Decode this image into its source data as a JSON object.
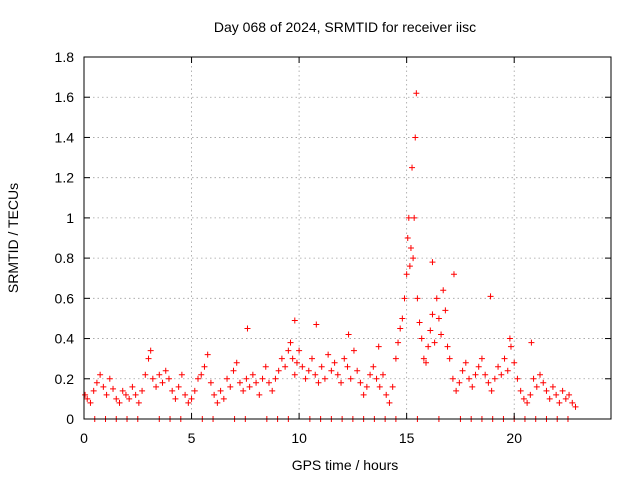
{
  "chart_data": {
    "type": "scatter",
    "title": "Day 068 of 2024, SRMTID for receiver iisc",
    "xlabel": "GPS time / hours",
    "ylabel": "SRMTID / TECUs",
    "xlim": [
      0,
      24.5
    ],
    "ylim": [
      0,
      1.8
    ],
    "xticks": [
      0,
      5,
      10,
      15,
      20
    ],
    "yticks": [
      0,
      0.2,
      0.4,
      0.6,
      0.8,
      1.0,
      1.2,
      1.4,
      1.6,
      1.8
    ],
    "xtick_labels": [
      "0",
      "5",
      "10",
      "15",
      "20"
    ],
    "ytick_labels": [
      "0",
      "0.2",
      "0.4",
      "0.6",
      "0.8",
      "1",
      "1.2",
      "1.4",
      "1.6",
      "1.8"
    ],
    "grid": true,
    "marker": "+",
    "marker_color": "#ff0000",
    "series": [
      {
        "name": "SRMTID",
        "x": [
          0.05,
          0.15,
          0.3,
          0.45,
          0.6,
          0.75,
          0.9,
          1.05,
          1.2,
          1.35,
          1.5,
          1.65,
          1.8,
          1.95,
          2.1,
          2.25,
          2.4,
          2.55,
          2.7,
          2.85,
          3.0,
          3.1,
          3.2,
          3.35,
          3.5,
          3.65,
          3.8,
          3.95,
          4.1,
          4.25,
          4.4,
          4.55,
          4.7,
          4.85,
          5.0,
          5.15,
          5.3,
          5.45,
          5.6,
          5.75,
          5.9,
          6.05,
          6.2,
          6.35,
          6.5,
          6.65,
          6.8,
          6.95,
          7.1,
          7.25,
          7.4,
          7.55,
          7.7,
          7.85,
          8.0,
          8.15,
          8.3,
          8.45,
          8.6,
          8.75,
          8.9,
          9.05,
          9.2,
          9.35,
          9.5,
          9.6,
          9.7,
          9.8,
          9.9,
          10.0,
          10.15,
          10.3,
          10.45,
          10.6,
          10.75,
          10.9,
          11.05,
          11.2,
          11.35,
          11.5,
          11.65,
          11.8,
          11.95,
          12.1,
          12.25,
          12.4,
          12.55,
          12.7,
          12.85,
          13.0,
          13.15,
          13.3,
          13.45,
          13.6,
          13.75,
          13.9,
          14.05,
          14.2,
          14.35,
          14.5,
          14.6,
          14.7,
          14.8,
          14.9,
          15.0,
          15.05,
          15.1,
          15.15,
          15.2,
          15.25,
          15.3,
          15.35,
          15.4,
          15.45,
          15.5,
          15.6,
          15.7,
          15.8,
          15.9,
          16.0,
          16.1,
          16.2,
          16.3,
          16.4,
          16.5,
          16.6,
          16.7,
          16.8,
          16.9,
          17.0,
          17.15,
          17.3,
          17.45,
          17.6,
          17.75,
          17.9,
          18.05,
          18.2,
          18.35,
          18.5,
          18.65,
          18.8,
          18.95,
          19.1,
          19.25,
          19.4,
          19.55,
          19.7,
          19.85,
          20.0,
          20.15,
          20.3,
          20.45,
          20.6,
          20.75,
          20.9,
          21.05,
          21.2,
          21.35,
          21.5,
          21.65,
          21.8,
          21.95,
          22.1,
          22.25,
          22.4,
          22.55,
          22.7,
          22.85,
          0.5,
          1.0,
          1.5,
          2.0,
          2.5,
          3.5,
          4.0,
          4.5,
          5.5,
          6.0,
          7.0,
          7.5,
          8.5,
          9.0,
          9.5,
          10.5,
          11.0,
          11.5,
          12.0,
          12.5,
          13.0,
          13.5,
          14.0,
          14.5,
          15.5,
          16.5,
          17.5,
          18.0,
          18.5,
          19.0,
          19.5,
          20.0,
          20.5,
          21.0,
          21.5,
          22.0,
          22.5,
          7.6,
          9.8,
          10.8,
          12.3,
          13.7,
          16.2,
          17.2,
          18.9,
          19.8,
          20.8
        ],
        "y": [
          0.12,
          0.1,
          0.08,
          0.14,
          0.18,
          0.22,
          0.16,
          0.12,
          0.2,
          0.15,
          0.1,
          0.08,
          0.14,
          0.12,
          0.1,
          0.16,
          0.12,
          0.08,
          0.14,
          0.22,
          0.3,
          0.34,
          0.2,
          0.16,
          0.22,
          0.18,
          0.24,
          0.2,
          0.14,
          0.1,
          0.16,
          0.22,
          0.12,
          0.08,
          0.1,
          0.14,
          0.2,
          0.22,
          0.26,
          0.32,
          0.18,
          0.12,
          0.08,
          0.14,
          0.1,
          0.2,
          0.16,
          0.24,
          0.28,
          0.18,
          0.14,
          0.2,
          0.16,
          0.22,
          0.18,
          0.12,
          0.2,
          0.26,
          0.18,
          0.14,
          0.2,
          0.24,
          0.3,
          0.26,
          0.34,
          0.38,
          0.3,
          0.22,
          0.28,
          0.34,
          0.26,
          0.2,
          0.24,
          0.3,
          0.22,
          0.18,
          0.26,
          0.2,
          0.32,
          0.24,
          0.28,
          0.22,
          0.18,
          0.3,
          0.26,
          0.2,
          0.34,
          0.24,
          0.18,
          0.12,
          0.16,
          0.22,
          0.26,
          0.2,
          0.16,
          0.22,
          0.12,
          0.08,
          0.16,
          0.3,
          0.38,
          0.45,
          0.5,
          0.6,
          0.72,
          0.9,
          1.0,
          0.76,
          0.85,
          1.25,
          0.8,
          1.0,
          1.4,
          1.62,
          0.6,
          0.48,
          0.4,
          0.3,
          0.28,
          0.36,
          0.44,
          0.52,
          0.38,
          0.6,
          0.5,
          0.42,
          0.64,
          0.54,
          0.36,
          0.3,
          0.2,
          0.14,
          0.18,
          0.24,
          0.28,
          0.2,
          0.16,
          0.22,
          0.26,
          0.3,
          0.22,
          0.18,
          0.14,
          0.2,
          0.26,
          0.22,
          0.3,
          0.24,
          0.36,
          0.28,
          0.2,
          0.14,
          0.1,
          0.08,
          0.12,
          0.2,
          0.16,
          0.22,
          0.18,
          0.14,
          0.1,
          0.16,
          0.12,
          0.08,
          0.14,
          0.1,
          0.12,
          0.08,
          0.06,
          0.0,
          0.0,
          0.0,
          0.0,
          0.0,
          0.0,
          0.0,
          0.0,
          0.0,
          0.0,
          0.0,
          0.0,
          0.0,
          0.0,
          0.0,
          0.0,
          0.0,
          0.0,
          0.0,
          0.0,
          0.0,
          0.0,
          0.0,
          0.0,
          0.0,
          0.0,
          0.0,
          0.0,
          0.0,
          0.0,
          0.0,
          0.0,
          0.0,
          0.0,
          0.0,
          0.0,
          0.0,
          0.45,
          0.49,
          0.47,
          0.42,
          0.36,
          0.78,
          0.72,
          0.61,
          0.4,
          0.38
        ]
      }
    ]
  }
}
